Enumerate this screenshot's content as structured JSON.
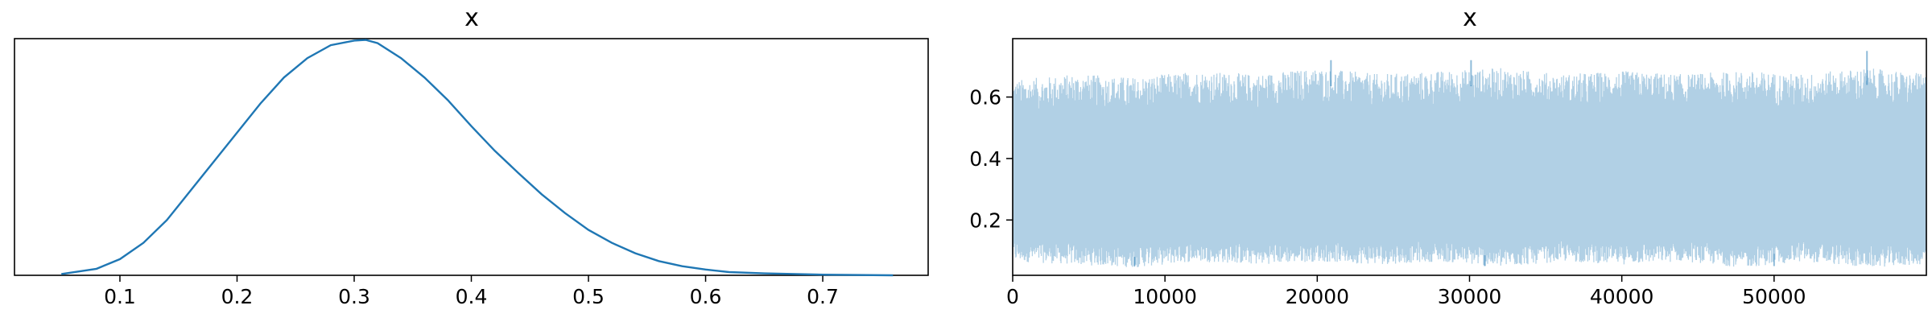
{
  "chart_data": [
    {
      "type": "line",
      "subtype": "density",
      "title": "x",
      "xlabel": "",
      "ylabel": "",
      "xlim": [
        0.01,
        0.79
      ],
      "ylim": [
        0,
        3.65
      ],
      "xticks": [
        0.1,
        0.2,
        0.3,
        0.4,
        0.5,
        0.6,
        0.7
      ],
      "xtick_labels": [
        "0.1",
        "0.2",
        "0.3",
        "0.4",
        "0.5",
        "0.6",
        "0.7"
      ],
      "yticks_visible": false,
      "grid": false,
      "color": "#1f77b4",
      "series": [
        {
          "x": [
            0.05,
            0.08,
            0.1,
            0.12,
            0.14,
            0.16,
            0.18,
            0.2,
            0.22,
            0.24,
            0.26,
            0.28,
            0.3,
            0.31,
            0.32,
            0.34,
            0.36,
            0.38,
            0.4,
            0.42,
            0.44,
            0.46,
            0.48,
            0.5,
            0.52,
            0.54,
            0.56,
            0.58,
            0.6,
            0.62,
            0.65,
            0.7,
            0.76
          ],
          "y": [
            0.02,
            0.1,
            0.25,
            0.5,
            0.85,
            1.3,
            1.75,
            2.2,
            2.65,
            3.05,
            3.35,
            3.55,
            3.62,
            3.63,
            3.58,
            3.35,
            3.05,
            2.7,
            2.3,
            1.92,
            1.58,
            1.25,
            0.96,
            0.7,
            0.5,
            0.34,
            0.22,
            0.14,
            0.09,
            0.05,
            0.03,
            0.01,
            0.0
          ]
        }
      ]
    },
    {
      "type": "line",
      "subtype": "trace",
      "title": "x",
      "xlabel": "",
      "ylabel": "",
      "xlim": [
        0,
        60000
      ],
      "ylim": [
        0.02,
        0.79
      ],
      "xticks": [
        0,
        10000,
        20000,
        30000,
        40000,
        50000
      ],
      "xtick_labels": [
        "0",
        "10000",
        "20000",
        "30000",
        "40000",
        "50000"
      ],
      "yticks": [
        0.2,
        0.4,
        0.6
      ],
      "ytick_labels": [
        "0.2",
        "0.4",
        "0.6"
      ],
      "grid": false,
      "color": "#1f77b4",
      "alpha": 0.35,
      "n_draws": 60000,
      "band": {
        "x": [
          0,
          4000,
          8000,
          12000,
          16000,
          20000,
          24000,
          28000,
          32000,
          36000,
          40000,
          44000,
          48000,
          52000,
          56000,
          60000
        ],
        "upper": [
          0.6,
          0.62,
          0.61,
          0.63,
          0.62,
          0.64,
          0.62,
          0.63,
          0.64,
          0.62,
          0.63,
          0.62,
          0.63,
          0.62,
          0.64,
          0.62
        ],
        "lower": [
          0.1,
          0.09,
          0.08,
          0.1,
          0.09,
          0.1,
          0.09,
          0.1,
          0.08,
          0.1,
          0.09,
          0.1,
          0.08,
          0.1,
          0.08,
          0.09
        ]
      },
      "spikes": [
        {
          "x": 20900,
          "y": 0.72
        },
        {
          "x": 30100,
          "y": 0.72
        },
        {
          "x": 56100,
          "y": 0.75
        },
        {
          "x": 8000,
          "y": 0.05
        },
        {
          "x": 31000,
          "y": 0.05
        },
        {
          "x": 50000,
          "y": 0.05
        }
      ]
    }
  ]
}
